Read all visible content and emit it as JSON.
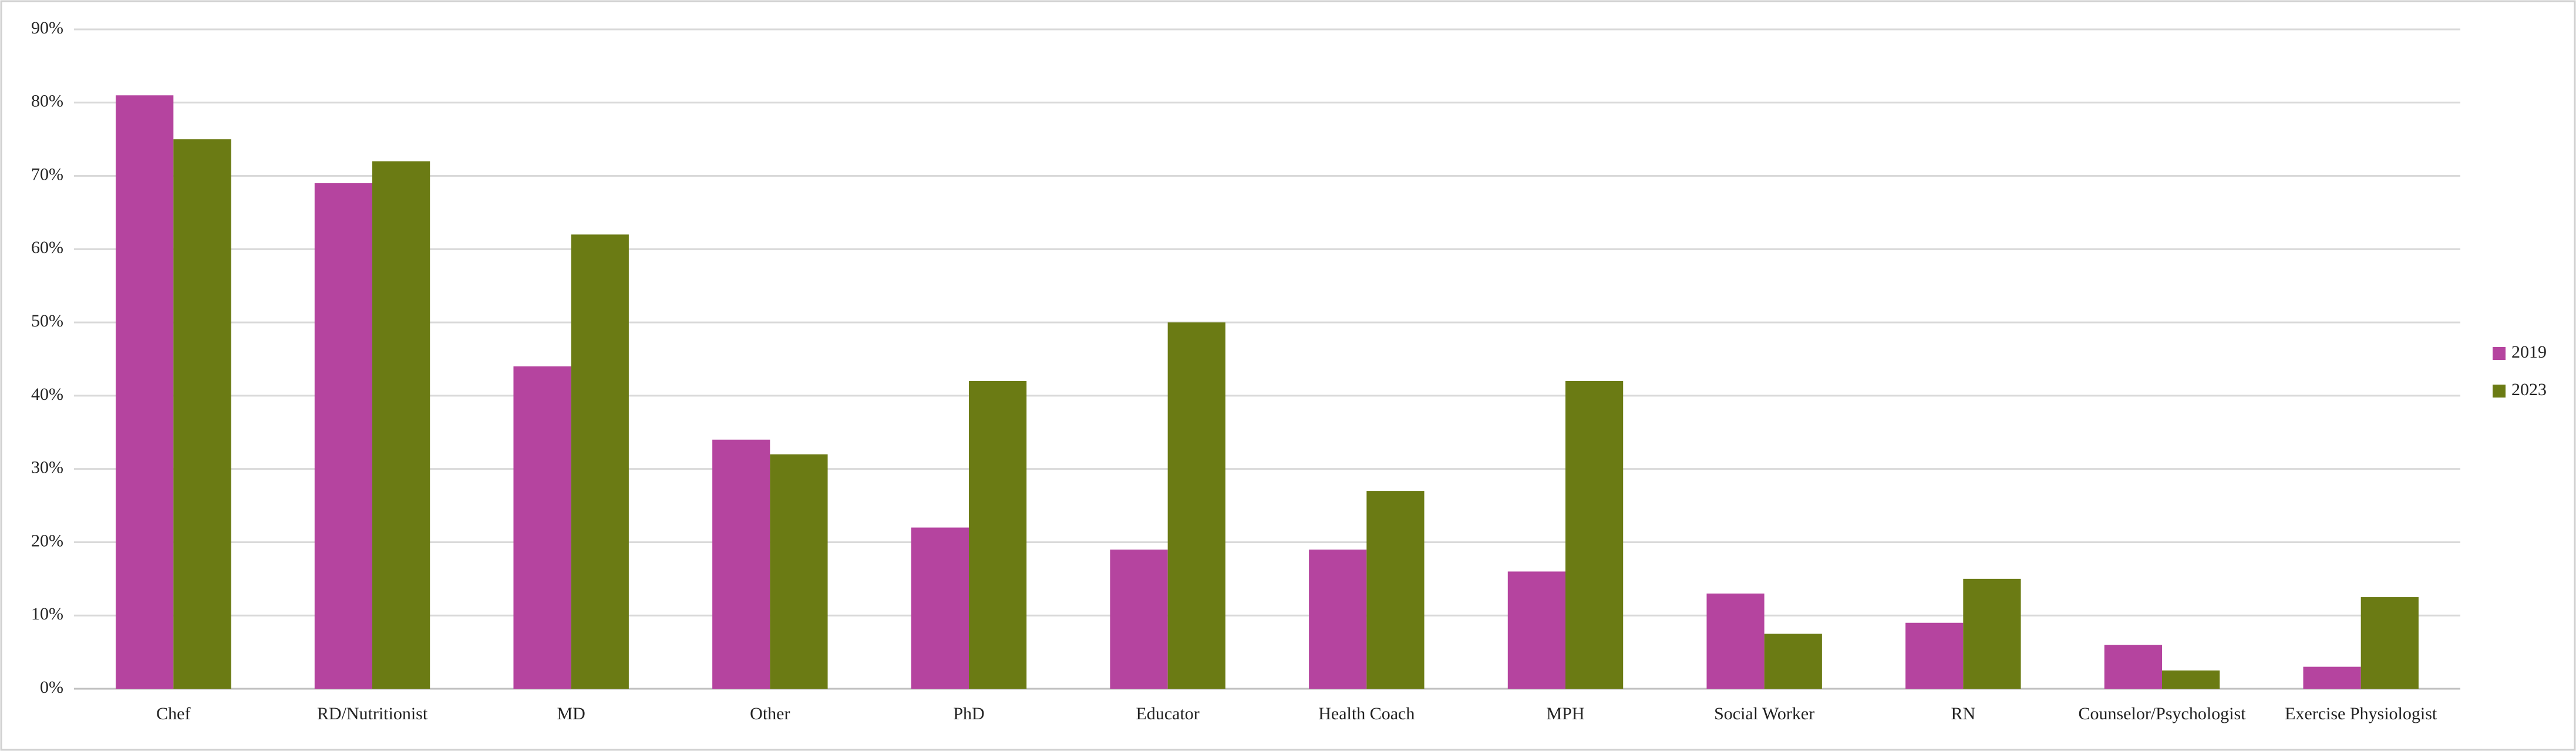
{
  "chart_data": {
    "type": "bar",
    "categories": [
      "Chef",
      "RD/Nutritionist",
      "MD",
      "Other",
      "PhD",
      "Educator",
      "Health Coach",
      "MPH",
      "Social Worker",
      "RN",
      "Counselor/Psychologist",
      "Exercise Physiologist"
    ],
    "series": [
      {
        "name": "2019",
        "color": "#b5449f",
        "values": [
          81,
          69,
          44,
          34,
          22,
          19,
          19,
          16,
          13,
          9,
          6,
          3
        ]
      },
      {
        "name": "2023",
        "color": "#6b7b14",
        "values": [
          75,
          72,
          62,
          32,
          42,
          50,
          27,
          42,
          7.5,
          15,
          2.5,
          12.5
        ]
      }
    ],
    "ylim": [
      0,
      90
    ],
    "yticks": [
      {
        "value": 0,
        "label": "0%"
      },
      {
        "value": 10,
        "label": "10%"
      },
      {
        "value": 20,
        "label": "20%"
      },
      {
        "value": 30,
        "label": "30%"
      },
      {
        "value": 40,
        "label": "40%"
      },
      {
        "value": 50,
        "label": "50%"
      },
      {
        "value": 60,
        "label": "60%"
      },
      {
        "value": 70,
        "label": "70%"
      },
      {
        "value": 80,
        "label": "80%"
      },
      {
        "value": 90,
        "label": "90%"
      }
    ],
    "grid": true,
    "legend": "right"
  }
}
